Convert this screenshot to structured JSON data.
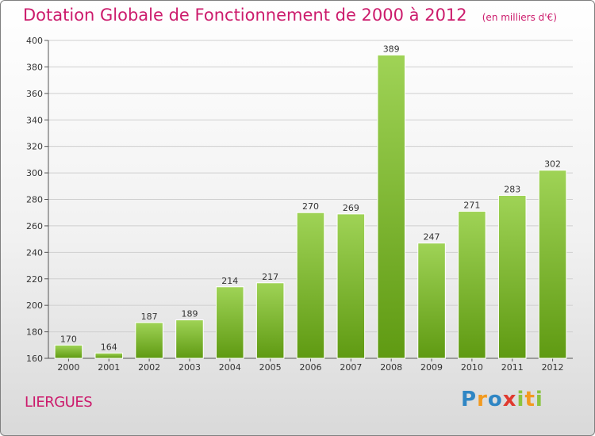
{
  "header": {
    "title": "Dotation Globale de Fonctionnement de 2000 à 2012",
    "subtitle": "(en milliers d'€)"
  },
  "commune": "LIERGUES",
  "logo": {
    "text": "Proxiti",
    "letters": [
      "P",
      "r",
      "o",
      "x",
      "i",
      "t",
      "i"
    ]
  },
  "colors": {
    "title": "#cc1b6c",
    "bar_top": "#9fd356",
    "bar_bottom": "#5f9a12",
    "grid": "#cfcfcf"
  },
  "chart_data": {
    "type": "bar",
    "title": "Dotation Globale de Fonctionnement de 2000 à 2012",
    "subtitle": "(en milliers d'€)",
    "categories": [
      "2000",
      "2001",
      "2002",
      "2003",
      "2004",
      "2005",
      "2006",
      "2007",
      "2008",
      "2009",
      "2010",
      "2011",
      "2012"
    ],
    "values": [
      170,
      164,
      187,
      189,
      214,
      217,
      270,
      269,
      389,
      247,
      271,
      283,
      302
    ],
    "ylim": [
      160,
      400
    ],
    "yticks": [
      160,
      180,
      200,
      220,
      240,
      260,
      280,
      300,
      320,
      340,
      360,
      380,
      400
    ],
    "xlabel": "",
    "ylabel": "",
    "grid": true,
    "data_labels": true
  }
}
